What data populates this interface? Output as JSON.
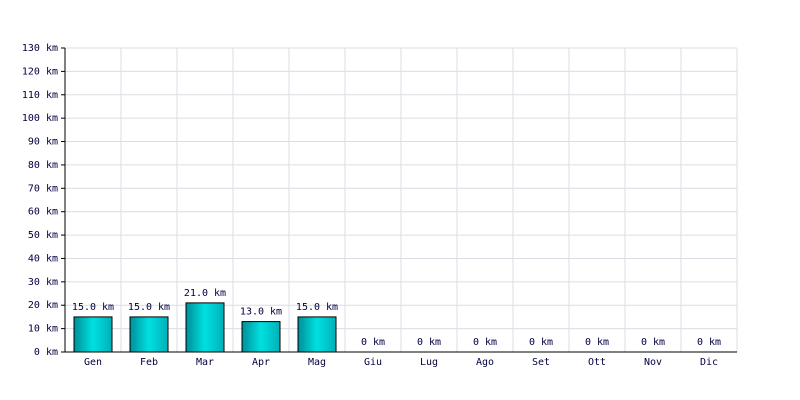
{
  "chart_data": {
    "type": "bar",
    "categories": [
      "Gen",
      "Feb",
      "Mar",
      "Apr",
      "Mag",
      "Giu",
      "Lug",
      "Ago",
      "Set",
      "Ott",
      "Nov",
      "Dic"
    ],
    "values": [
      15,
      15,
      21,
      13,
      15,
      0,
      0,
      0,
      0,
      0,
      0,
      0
    ],
    "value_labels": [
      "15.0 km",
      "15.0 km",
      "21.0 km",
      "13.0 km",
      "15.0 km",
      "0 km",
      "0 km",
      "0 km",
      "0 km",
      "0 km",
      "0 km",
      "0 km"
    ],
    "color": "#00e0e0",
    "ylim": [
      0,
      130
    ],
    "yticks": [
      {
        "value": 0,
        "label": "0 km"
      },
      {
        "value": 10,
        "label": "10 km"
      },
      {
        "value": 20,
        "label": "20 km"
      },
      {
        "value": 30,
        "label": "30 km"
      },
      {
        "value": 40,
        "label": "40 km"
      },
      {
        "value": 50,
        "label": "50 km"
      },
      {
        "value": 60,
        "label": "60 km"
      },
      {
        "value": 70,
        "label": "70 km"
      },
      {
        "value": 80,
        "label": "80 km"
      },
      {
        "value": 90,
        "label": "90 km"
      },
      {
        "value": 100,
        "label": "100 km"
      },
      {
        "value": 110,
        "label": "110 km"
      },
      {
        "value": 120,
        "label": "120 km"
      },
      {
        "value": 130,
        "label": "130 km"
      }
    ],
    "grid": true
  }
}
